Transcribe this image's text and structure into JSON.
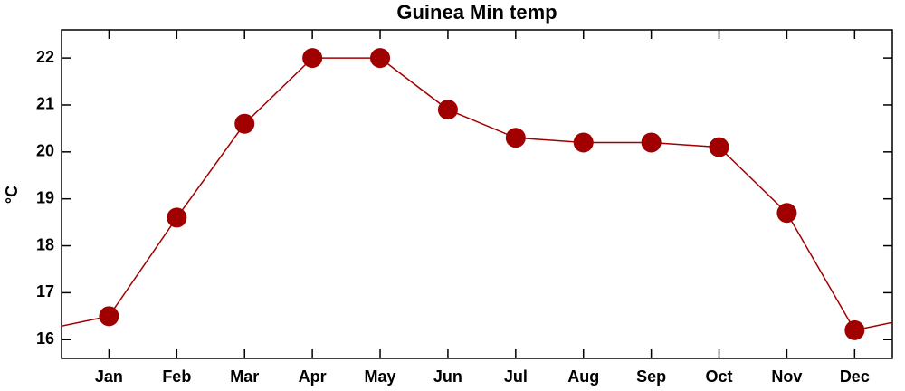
{
  "chart_data": {
    "type": "line",
    "title": "Guinea Min temp",
    "ylabel": "°C",
    "categories": [
      "Jan",
      "Feb",
      "Mar",
      "Apr",
      "May",
      "Jun",
      "Jul",
      "Aug",
      "Sep",
      "Oct",
      "Nov",
      "Dec"
    ],
    "values": [
      16.5,
      18.6,
      20.6,
      22.0,
      22.0,
      20.9,
      20.3,
      20.2,
      20.2,
      20.1,
      18.7,
      16.2
    ],
    "color": "#a00000",
    "ylim": [
      15.6,
      22.6
    ],
    "yticks": [
      16,
      17,
      18,
      19,
      20,
      21,
      22
    ]
  }
}
